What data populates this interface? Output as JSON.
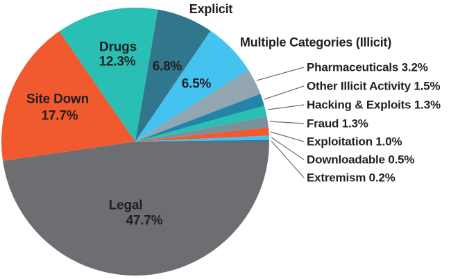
{
  "chart_data": {
    "type": "pie",
    "title": "",
    "legend_position": "right",
    "direction": "clockwise",
    "start_angle": "east",
    "slices": [
      {
        "id": "legal",
        "label": "Legal",
        "value": 47.7,
        "pct": "47.7%",
        "color": "#6D6E71"
      },
      {
        "id": "site-down",
        "label": "Site Down",
        "value": 17.7,
        "pct": "17.7%",
        "color": "#F1592F"
      },
      {
        "id": "drugs",
        "label": "Drugs",
        "value": 12.3,
        "pct": "12.3%",
        "color": "#2ABFB4"
      },
      {
        "id": "explicit",
        "label": "Explicit",
        "value": 6.8,
        "pct": "6.8%",
        "color": "#30768C"
      },
      {
        "id": "multiple-categories-illicit",
        "label": "Multiple Categories (Illicit)",
        "value": 6.5,
        "pct": "6.5%",
        "color": "#45C3F0"
      },
      {
        "id": "pharmaceuticals",
        "label": "Pharmaceuticals",
        "value": 3.2,
        "pct": "3.2%",
        "color": "#92A5B0"
      },
      {
        "id": "other-illicit-activity",
        "label": "Other Illicit Activity",
        "value": 1.5,
        "pct": "1.5%",
        "color": "#2285A8"
      },
      {
        "id": "hacking-exploits",
        "label": "Hacking & Exploits",
        "value": 1.3,
        "pct": "1.3%",
        "color": "#2ABFB4"
      },
      {
        "id": "fraud",
        "label": "Fraud",
        "value": 1.3,
        "pct": "1.3%",
        "color": "#76939A"
      },
      {
        "id": "exploitation",
        "label": "Exploitation",
        "value": 1.0,
        "pct": "1.0%",
        "color": "#F1592F"
      },
      {
        "id": "downloadable",
        "label": "Downloadable",
        "value": 0.5,
        "pct": "0.5%",
        "color": "#3FC2F0"
      },
      {
        "id": "extremism",
        "label": "Extremism",
        "value": 0.2,
        "pct": "0.2%",
        "color": "#2B7C9E"
      }
    ]
  }
}
